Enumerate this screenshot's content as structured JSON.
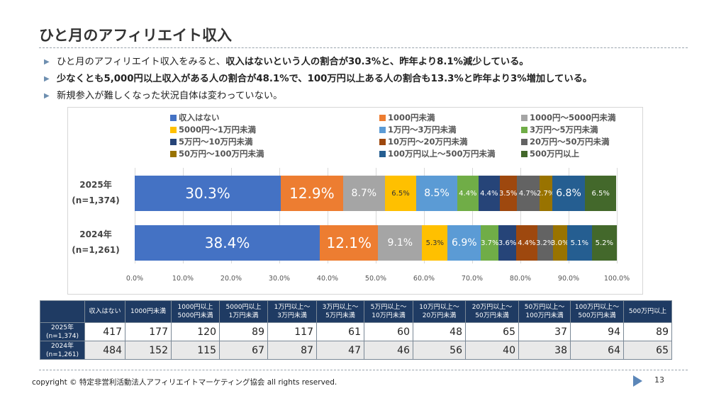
{
  "title": "ひと月のアフィリエイト収入",
  "bullets": [
    {
      "parts": [
        {
          "t": "ひと月のアフィリエイト収入をみると、",
          "b": false
        },
        {
          "t": "収入はないという人の割合が30.3%と、昨年より8.1%減少している。",
          "b": true
        }
      ]
    },
    {
      "parts": [
        {
          "t": "少なくとも5,000円以上収入がある人の割合が48.1%で、100万円以上ある人の割合も13.3%と昨年より3%増加している。",
          "b": true
        }
      ]
    },
    {
      "parts": [
        {
          "t": "新規参入が難しくなった状況自体は変わっていない。",
          "b": false
        }
      ]
    }
  ],
  "chart_data": {
    "type": "bar",
    "orientation": "horizontal",
    "stacked": "100%",
    "categories": [
      {
        "label": "2025年",
        "sublabel": "(n=1,374)"
      },
      {
        "label": "2024年",
        "sublabel": "(n=1,261)"
      }
    ],
    "xlim": [
      0,
      100
    ],
    "xticks": [
      "0.0%",
      "10.0%",
      "20.0%",
      "30.0%",
      "40.0%",
      "50.0%",
      "60.0%",
      "70.0%",
      "80.0%",
      "90.0%",
      "100.0%"
    ],
    "grid": true,
    "legend_position": "top",
    "series": [
      {
        "name": "収入はない",
        "color": "#4472c4",
        "values": [
          30.3,
          38.4
        ],
        "labels": [
          "30.3%",
          "38.4%"
        ],
        "text": "#ffffff"
      },
      {
        "name": "1000円未満",
        "color": "#ed7d31",
        "values": [
          12.9,
          12.1
        ],
        "labels": [
          "12.9%",
          "12.1%"
        ],
        "text": "#ffffff"
      },
      {
        "name": "1000円～5000円未満",
        "color": "#a5a5a5",
        "values": [
          8.7,
          9.1
        ],
        "labels": [
          "8.7%",
          "9.1%"
        ],
        "text": "#ffffff"
      },
      {
        "name": "5000円～1万円未満",
        "color": "#ffc000",
        "values": [
          6.5,
          5.3
        ],
        "labels": [
          "6.5%",
          "5.3%"
        ],
        "text": "#333333"
      },
      {
        "name": "1万円～3万円未満",
        "color": "#5b9bd5",
        "values": [
          8.5,
          6.9
        ],
        "labels": [
          "8.5%",
          "6.9%"
        ],
        "text": "#ffffff"
      },
      {
        "name": "3万円～5万円未満",
        "color": "#70ad47",
        "values": [
          4.4,
          3.7
        ],
        "labels": [
          "4.4%",
          "3.7%"
        ],
        "text": "#ffffff"
      },
      {
        "name": "5万円～10万円未満",
        "color": "#264478",
        "values": [
          4.4,
          3.6
        ],
        "labels": [
          "4.4%",
          "3.6%"
        ],
        "text": "#ffffff"
      },
      {
        "name": "10万円～20万円未満",
        "color": "#9e480e",
        "values": [
          3.5,
          4.4
        ],
        "labels": [
          "3.5%",
          "4.4%"
        ],
        "text": "#ffffff"
      },
      {
        "name": "20万円～50万円未満",
        "color": "#636363",
        "values": [
          4.7,
          3.2
        ],
        "labels": [
          "4.7%",
          "3.2%"
        ],
        "text": "#ffffff"
      },
      {
        "name": "50万円～100万円未満",
        "color": "#997300",
        "values": [
          2.7,
          3.0
        ],
        "labels": [
          "2.7%",
          "3.0%"
        ],
        "text": "#ffffff"
      },
      {
        "name": "100万円以上～500万円未満",
        "color": "#255e91",
        "values": [
          6.8,
          5.1
        ],
        "labels": [
          "6.8%",
          "5.1%"
        ],
        "text": "#ffffff"
      },
      {
        "name": "500万円以上",
        "color": "#43682b",
        "values": [
          6.5,
          5.2
        ],
        "labels": [
          "6.5%",
          "5.2%"
        ],
        "text": "#ffffff"
      }
    ]
  },
  "table": {
    "headers": [
      [
        "収入はない"
      ],
      [
        "1000円未満"
      ],
      [
        "1000円以上",
        "5000円未満"
      ],
      [
        "5000円以上",
        "1万円未満"
      ],
      [
        "1万円以上～",
        "3万円未満"
      ],
      [
        "3万円以上～",
        "5万円未満"
      ],
      [
        "5万円以上～",
        "10万円未満"
      ],
      [
        "10万円以上～",
        "20万円未満"
      ],
      [
        "20万円以上～",
        "50万円未満"
      ],
      [
        "50万円以上～",
        "100万円未満"
      ],
      [
        "100万円以上～",
        "500万円未満"
      ],
      [
        "500万円以上"
      ]
    ],
    "rows": [
      {
        "label": [
          "2025年",
          "(n=1,374)"
        ],
        "values": [
          "417",
          "177",
          "120",
          "89",
          "117",
          "61",
          "60",
          "48",
          "65",
          "37",
          "94",
          "89"
        ]
      },
      {
        "label": [
          "2024年",
          "(n=1,261)"
        ],
        "values": [
          "484",
          "152",
          "115",
          "67",
          "87",
          "47",
          "46",
          "56",
          "40",
          "38",
          "64",
          "65"
        ]
      }
    ]
  },
  "footer": {
    "copyright": "copyright © 特定非営利活動法人アフィリエイトマーケティング協会 all rights reserved.",
    "page_number": "13"
  }
}
